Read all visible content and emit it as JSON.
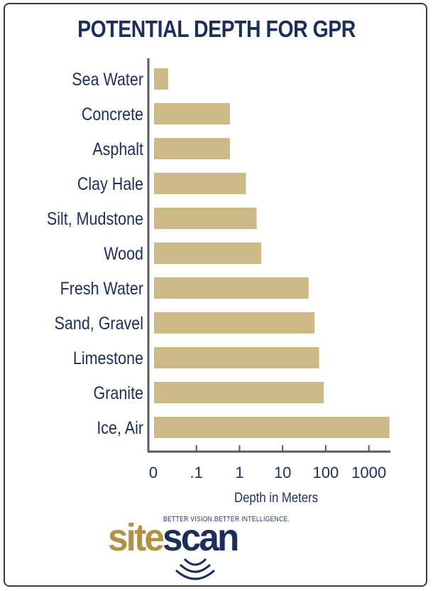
{
  "title": "POTENTIAL DEPTH FOR GPR",
  "colors": {
    "bar": "#cdb985",
    "text": "#1c2f5a",
    "axis": "#5a5a5a",
    "logo_gold": "#b29142",
    "logo_navy": "#1c2f5a"
  },
  "chart_data": {
    "type": "bar",
    "orientation": "horizontal",
    "title": "POTENTIAL DEPTH FOR GPR",
    "xlabel": "Depth in Meters",
    "ylabel": "",
    "x_scale": "log",
    "x_ticks": [
      "0",
      ".1",
      "1",
      "10",
      "100",
      "1000"
    ],
    "categories": [
      "Sea Water",
      "Concrete",
      "Asphalt",
      "Clay Hale",
      "Silt, Mudstone",
      "Wood",
      "Fresh Water",
      "Sand, Gravel",
      "Limestone",
      "Granite",
      "Ice, Air"
    ],
    "values": [
      0.022,
      0.6,
      0.6,
      1.4,
      2.5,
      3.2,
      40,
      55,
      70,
      90,
      3000
    ],
    "grid": false,
    "legend": "none"
  },
  "logo": {
    "tagline": "BETTER VISION.BETTER INTELLIGENCE.",
    "word_part1": "site",
    "word_part2": "scan"
  }
}
